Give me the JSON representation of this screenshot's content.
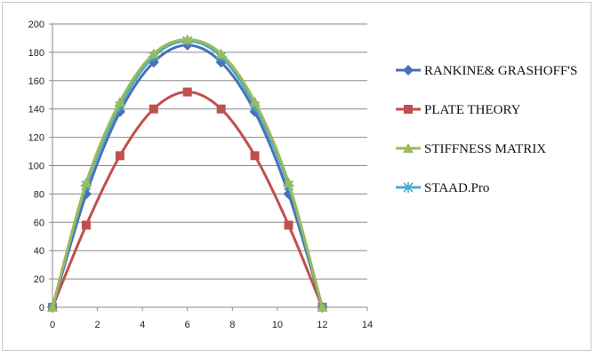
{
  "chart_data": {
    "type": "line",
    "x": [
      0,
      1.5,
      3,
      4.5,
      6,
      7.5,
      9,
      10.5,
      12
    ],
    "xlim": [
      0,
      14
    ],
    "ylim": [
      0,
      200
    ],
    "xticks": [
      0,
      2,
      4,
      6,
      8,
      10,
      12,
      14
    ],
    "yticks": [
      0,
      20,
      40,
      60,
      80,
      100,
      120,
      140,
      160,
      180,
      200
    ],
    "grid": "horizontal",
    "legend_position": "right",
    "series": [
      {
        "name": "RANKINE& GRASHOFF'S",
        "color": "#4a6fb5",
        "marker": "diamond",
        "values": [
          0,
          80,
          138,
          173,
          185,
          173,
          138,
          80,
          0
        ]
      },
      {
        "name": "PLATE THEORY",
        "color": "#c0504d",
        "marker": "square",
        "values": [
          0,
          58,
          107,
          140,
          152,
          140,
          107,
          58,
          0
        ]
      },
      {
        "name": "STIFFNESS MATRIX",
        "color": "#9bbb59",
        "marker": "triangle",
        "values": [
          0,
          88,
          145,
          179,
          189,
          179,
          145,
          88,
          0
        ]
      },
      {
        "name": "STAAD.Pro",
        "color": "#4bacc6",
        "marker": "star",
        "values": [
          0,
          86,
          142,
          177,
          188,
          177,
          142,
          86,
          0
        ]
      }
    ]
  }
}
